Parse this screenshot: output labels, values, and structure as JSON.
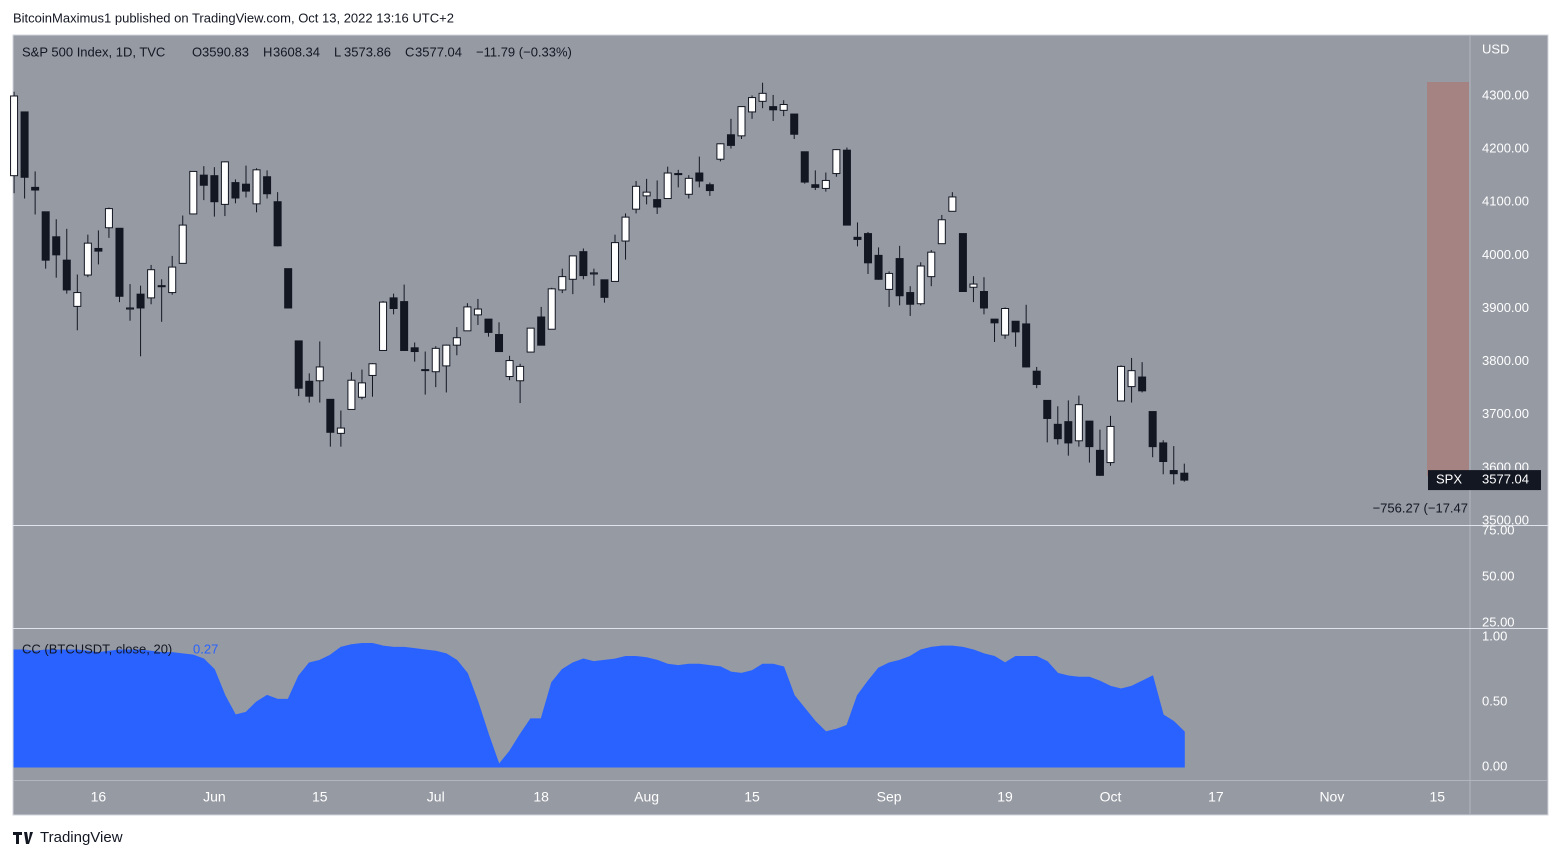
{
  "header": {
    "published": "BitcoinMaximus1 published on TradingView.com, Oct 13, 2022 13:16 UTC+2",
    "brand": "TradingView"
  },
  "chart_data": [
    {
      "type": "candlestick",
      "title": "S&P 500 Index, 1D, TVC",
      "currency": "USD",
      "ohlc_letters": [
        "O",
        "H",
        "L",
        "C"
      ],
      "ohlc_values": [
        3590.83,
        3608.34,
        3573.86,
        3577.04
      ],
      "change": "−11.79 (−0.33%)",
      "symbol": "SPX",
      "range_annotation": "−756.27 (−17.47",
      "up_color": "#ffffff",
      "down_color": "#131722",
      "candles": [
        [
          4150,
          4308,
          4117,
          4300
        ],
        [
          4270,
          4270,
          4107,
          4147
        ],
        [
          4128,
          4158,
          4077,
          4123
        ],
        [
          4082,
          4082,
          3975,
          3991
        ],
        [
          4035,
          4068,
          3958,
          4001
        ],
        [
          3991,
          4050,
          3928,
          3935
        ],
        [
          3904,
          3964,
          3859,
          3930
        ],
        [
          3963,
          4039,
          3959,
          4023
        ],
        [
          4013,
          4047,
          3983,
          4008
        ],
        [
          4052,
          4090,
          4033,
          4088
        ],
        [
          4051,
          4051,
          3912,
          3923
        ],
        [
          3899,
          3946,
          3877,
          3901
        ],
        [
          3927,
          3943,
          3810,
          3901
        ],
        [
          3920,
          3982,
          3908,
          3973
        ],
        [
          3943,
          3955,
          3875,
          3941
        ],
        [
          3930,
          3999,
          3926,
          3978
        ],
        [
          3985,
          4075,
          3985,
          4057
        ],
        [
          4078,
          4158,
          4077,
          4158
        ],
        [
          4151,
          4168,
          4104,
          4132
        ],
        [
          4150,
          4166,
          4073,
          4101
        ],
        [
          4096,
          4177,
          4074,
          4176
        ],
        [
          4137,
          4143,
          4098,
          4108
        ],
        [
          4134,
          4169,
          4109,
          4121
        ],
        [
          4097,
          4164,
          4081,
          4161
        ],
        [
          4148,
          4160,
          4107,
          4116
        ],
        [
          4101,
          4119,
          4017,
          4018
        ],
        [
          3975,
          3975,
          3900,
          3901
        ],
        [
          3839,
          3839,
          3735,
          3750
        ],
        [
          3763,
          3778,
          3723,
          3735
        ],
        [
          3764,
          3838,
          3723,
          3790
        ],
        [
          3729,
          3729,
          3640,
          3667
        ],
        [
          3665,
          3708,
          3640,
          3675
        ],
        [
          3710,
          3780,
          3710,
          3765
        ],
        [
          3733,
          3785,
          3729,
          3760
        ],
        [
          3774,
          3797,
          3734,
          3796
        ],
        [
          3821,
          3914,
          3821,
          3912
        ],
        [
          3920,
          3928,
          3889,
          3900
        ],
        [
          3913,
          3945,
          3821,
          3821
        ],
        [
          3826,
          3836,
          3800,
          3819
        ],
        [
          3785,
          3819,
          3738,
          3785
        ],
        [
          3781,
          3829,
          3752,
          3825
        ],
        [
          3792,
          3832,
          3742,
          3831
        ],
        [
          3831,
          3865,
          3812,
          3845
        ],
        [
          3858,
          3910,
          3858,
          3903
        ],
        [
          3888,
          3918,
          3869,
          3899
        ],
        [
          3880,
          3880,
          3847,
          3855
        ],
        [
          3851,
          3874,
          3818,
          3819
        ],
        [
          3772,
          3811,
          3765,
          3802
        ],
        [
          3764,
          3796,
          3722,
          3791
        ],
        [
          3818,
          3863,
          3818,
          3863
        ],
        [
          3884,
          3903,
          3831,
          3831
        ],
        [
          3861,
          3939,
          3861,
          3937
        ],
        [
          3935,
          3975,
          3929,
          3960
        ],
        [
          3955,
          3999,
          3927,
          3999
        ],
        [
          4007,
          4013,
          3955,
          3962
        ],
        [
          3965,
          3975,
          3943,
          3967
        ],
        [
          3954,
          3954,
          3911,
          3921
        ],
        [
          3951,
          4039,
          3951,
          4024
        ],
        [
          4027,
          4079,
          3992,
          4072
        ],
        [
          4087,
          4140,
          4079,
          4130
        ],
        [
          4112,
          4144,
          4096,
          4119
        ],
        [
          4105,
          4141,
          4078,
          4091
        ],
        [
          4107,
          4167,
          4107,
          4155
        ],
        [
          4154,
          4161,
          4128,
          4152
        ],
        [
          4115,
          4151,
          4107,
          4145
        ],
        [
          4155,
          4186,
          4128,
          4140
        ],
        [
          4133,
          4137,
          4112,
          4122
        ],
        [
          4181,
          4211,
          4177,
          4210
        ],
        [
          4227,
          4257,
          4201,
          4207
        ],
        [
          4225,
          4280,
          4219,
          4280
        ],
        [
          4270,
          4301,
          4257,
          4297
        ],
        [
          4290,
          4325,
          4277,
          4305
        ],
        [
          4280,
          4302,
          4253,
          4274
        ],
        [
          4273,
          4292,
          4262,
          4284
        ],
        [
          4266,
          4266,
          4219,
          4228
        ],
        [
          4195,
          4195,
          4135,
          4138
        ],
        [
          4133,
          4160,
          4123,
          4128
        ],
        [
          4126,
          4156,
          4120,
          4141
        ],
        [
          4154,
          4200,
          4148,
          4199
        ],
        [
          4198,
          4203,
          4057,
          4057
        ],
        [
          4034,
          4062,
          4017,
          4030
        ],
        [
          4041,
          4044,
          3965,
          3986
        ],
        [
          4000,
          4015,
          3954,
          3955
        ],
        [
          3936,
          3970,
          3903,
          3966
        ],
        [
          3994,
          4018,
          3906,
          3924
        ],
        [
          3930,
          3942,
          3886,
          3908
        ],
        [
          3909,
          3987,
          3906,
          3980
        ],
        [
          3960,
          4010,
          3942,
          4006
        ],
        [
          4022,
          4076,
          4022,
          4067
        ],
        [
          4083,
          4119,
          4083,
          4110
        ],
        [
          4041,
          4041,
          3933,
          3932
        ],
        [
          3940,
          3961,
          3912,
          3946
        ],
        [
          3932,
          3959,
          3889,
          3901
        ],
        [
          3880,
          3880,
          3837,
          3873
        ],
        [
          3850,
          3902,
          3843,
          3900
        ],
        [
          3876,
          3876,
          3828,
          3856
        ],
        [
          3871,
          3907,
          3789,
          3790
        ],
        [
          3782,
          3790,
          3750,
          3757
        ],
        [
          3727,
          3727,
          3648,
          3693
        ],
        [
          3682,
          3716,
          3644,
          3655
        ],
        [
          3687,
          3727,
          3623,
          3647
        ],
        [
          3651,
          3736,
          3640,
          3719
        ],
        [
          3688,
          3688,
          3610,
          3640
        ],
        [
          3633,
          3672,
          3585,
          3586
        ],
        [
          3610,
          3698,
          3604,
          3678
        ],
        [
          3726,
          3793,
          3726,
          3791
        ],
        [
          3753,
          3807,
          3723,
          3783
        ],
        [
          3771,
          3799,
          3742,
          3745
        ],
        [
          3706,
          3706,
          3620,
          3640
        ],
        [
          3647,
          3652,
          3588,
          3612
        ],
        [
          3595,
          3641,
          3569,
          3589
        ],
        [
          3590,
          3608,
          3574,
          3577
        ]
      ],
      "xlim": [
        -0.1,
        138.1
      ],
      "xticks": [
        {
          "value": 8,
          "label": "16"
        },
        {
          "value": 19,
          "label": "Jun"
        },
        {
          "value": 29,
          "label": "15"
        },
        {
          "value": 40,
          "label": "Jul"
        },
        {
          "value": 50,
          "label": "18"
        },
        {
          "value": 60,
          "label": "Aug"
        },
        {
          "value": 70,
          "label": "15"
        },
        {
          "value": 83,
          "label": "Sep"
        },
        {
          "value": 94,
          "label": "19"
        },
        {
          "value": 104,
          "label": "Oct"
        },
        {
          "value": 114,
          "label": "17"
        },
        {
          "value": 125,
          "label": "Nov"
        },
        {
          "value": 135,
          "label": "15"
        }
      ],
      "ylim": [
        3492.5,
        4414.8
      ],
      "yticks": [
        {
          "value": 3500,
          "label": "3500.00"
        },
        {
          "value": 3600,
          "label": "3600.00"
        },
        {
          "value": 3700,
          "label": "3700.00"
        },
        {
          "value": 3800,
          "label": "3800.00"
        },
        {
          "value": 3900,
          "label": "3900.00"
        },
        {
          "value": 4000,
          "label": "4000.00"
        },
        {
          "value": 4100,
          "label": "4100.00"
        },
        {
          "value": 4200,
          "label": "4200.00"
        },
        {
          "value": 4300,
          "label": "4300.00"
        }
      ]
    },
    {
      "type": "blank",
      "ylim": [
        22.2,
        78.3
      ],
      "yticks": [
        {
          "value": 25,
          "label": "25.00"
        },
        {
          "value": 50,
          "label": "50.00"
        },
        {
          "value": 75,
          "label": "75.00"
        }
      ]
    },
    {
      "type": "area",
      "ylim": [
        -0.1,
        1.069
      ],
      "yticks": [
        {
          "value": 0,
          "label": "0.00"
        },
        {
          "value": 0.5,
          "label": "0.50"
        },
        {
          "value": 1,
          "label": "1.00"
        }
      ],
      "series": [
        {
          "name": "CC (BTCUSDT, close, 20)",
          "color": "#2962ff",
          "values": [
            0.9,
            0.9,
            0.89,
            0.9,
            0.9,
            0.9,
            0.9,
            0.89,
            0.88,
            0.89,
            0.9,
            0.9,
            0.9,
            0.89,
            0.88,
            0.88,
            0.87,
            0.86,
            0.83,
            0.75,
            0.55,
            0.4,
            0.42,
            0.5,
            0.55,
            0.52,
            0.52,
            0.7,
            0.8,
            0.82,
            0.86,
            0.92,
            0.94,
            0.95,
            0.95,
            0.93,
            0.92,
            0.92,
            0.91,
            0.9,
            0.89,
            0.87,
            0.82,
            0.72,
            0.5,
            0.25,
            0.02,
            0.12,
            0.25,
            0.37,
            0.37,
            0.65,
            0.75,
            0.8,
            0.83,
            0.81,
            0.82,
            0.83,
            0.85,
            0.85,
            0.84,
            0.82,
            0.79,
            0.78,
            0.79,
            0.79,
            0.78,
            0.77,
            0.73,
            0.72,
            0.74,
            0.79,
            0.79,
            0.77,
            0.55,
            0.45,
            0.35,
            0.27,
            0.29,
            0.32,
            0.55,
            0.66,
            0.76,
            0.8,
            0.82,
            0.85,
            0.9,
            0.92,
            0.93,
            0.93,
            0.92,
            0.9,
            0.87,
            0.85,
            0.8,
            0.85,
            0.85,
            0.85,
            0.81,
            0.72,
            0.7,
            0.69,
            0.69,
            0.66,
            0.62,
            0.6,
            0.62,
            0.66,
            0.7,
            0.4,
            0.35,
            0.27
          ]
        }
      ]
    }
  ]
}
